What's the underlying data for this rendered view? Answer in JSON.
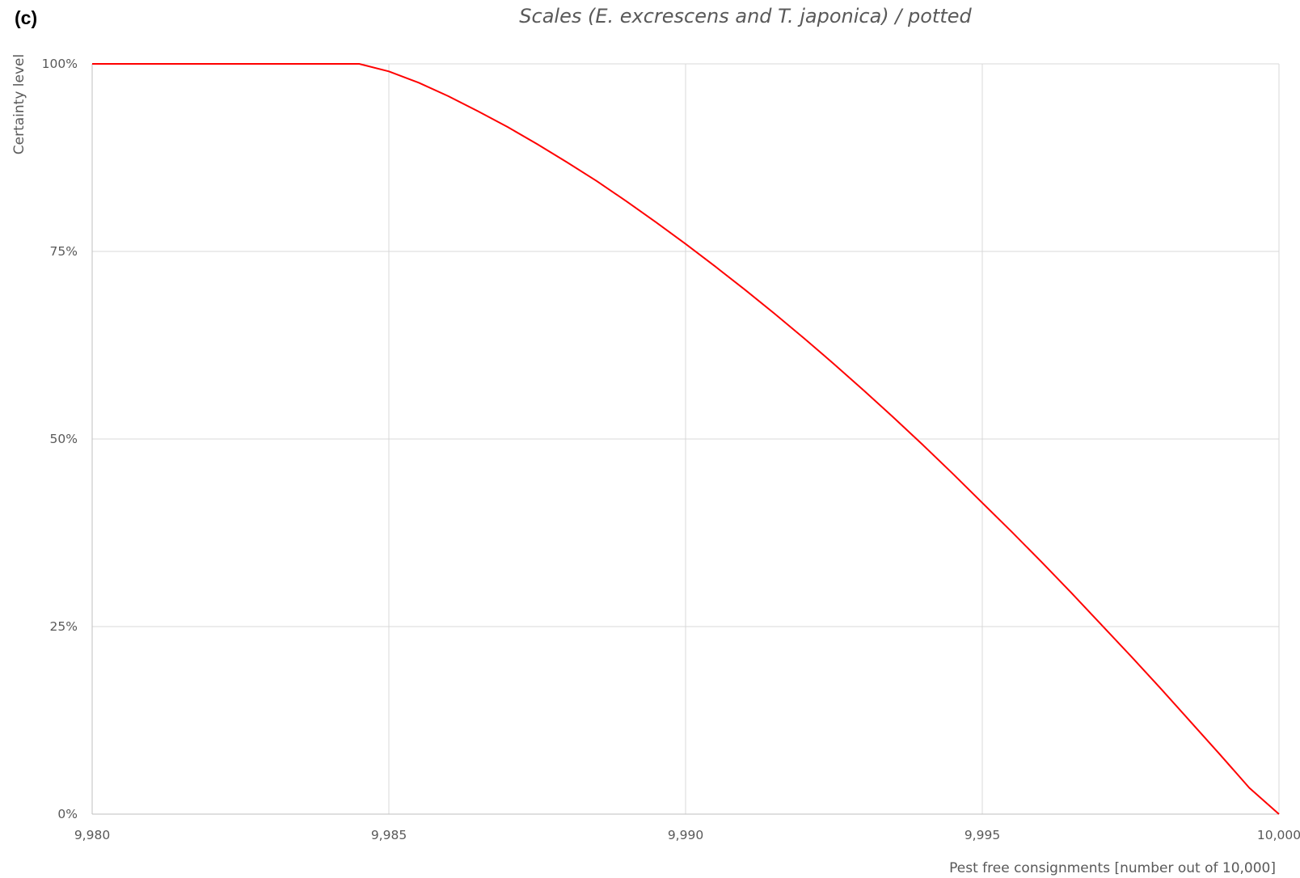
{
  "panel_label": "(c)",
  "chart_data": {
    "type": "line",
    "title": "Scales (E. excrescens and T. japonica) / potted",
    "xlabel": "Pest free consignments [number out of 10,000]",
    "ylabel": "Certainty level",
    "xlim": [
      9980,
      10000
    ],
    "ylim": [
      0,
      100
    ],
    "x_ticks": [
      9980,
      9985,
      9990,
      9995,
      10000
    ],
    "x_tick_labels": [
      "9,980",
      "9,985",
      "9,990",
      "9,995",
      "10,000"
    ],
    "y_ticks": [
      0,
      25,
      50,
      75,
      100
    ],
    "y_tick_labels": [
      "0%",
      "25%",
      "50%",
      "75%",
      "100%"
    ],
    "grid": true,
    "legend": "none",
    "series": [
      {
        "color": "#ff0000",
        "x": [
          9980,
          9984.5,
          9985,
          9985.5,
          9986,
          9986.5,
          9987,
          9987.5,
          9988,
          9988.5,
          9989,
          9989.5,
          9990,
          9990.5,
          9991,
          9991.5,
          9992,
          9992.5,
          9993,
          9993.5,
          9994,
          9994.5,
          9995,
          9995.5,
          9996,
          9996.5,
          9997,
          9997.5,
          9998,
          9998.5,
          9999,
          9999.5,
          10000
        ],
        "y": [
          100,
          100,
          99.0,
          97.5,
          95.7,
          93.7,
          91.6,
          89.3,
          86.9,
          84.4,
          81.7,
          78.9,
          76.0,
          73.0,
          69.9,
          66.7,
          63.4,
          60.0,
          56.5,
          52.9,
          49.2,
          45.4,
          41.5,
          37.6,
          33.6,
          29.5,
          25.3,
          21.1,
          16.8,
          12.4,
          8.0,
          3.5,
          0
        ]
      }
    ]
  }
}
